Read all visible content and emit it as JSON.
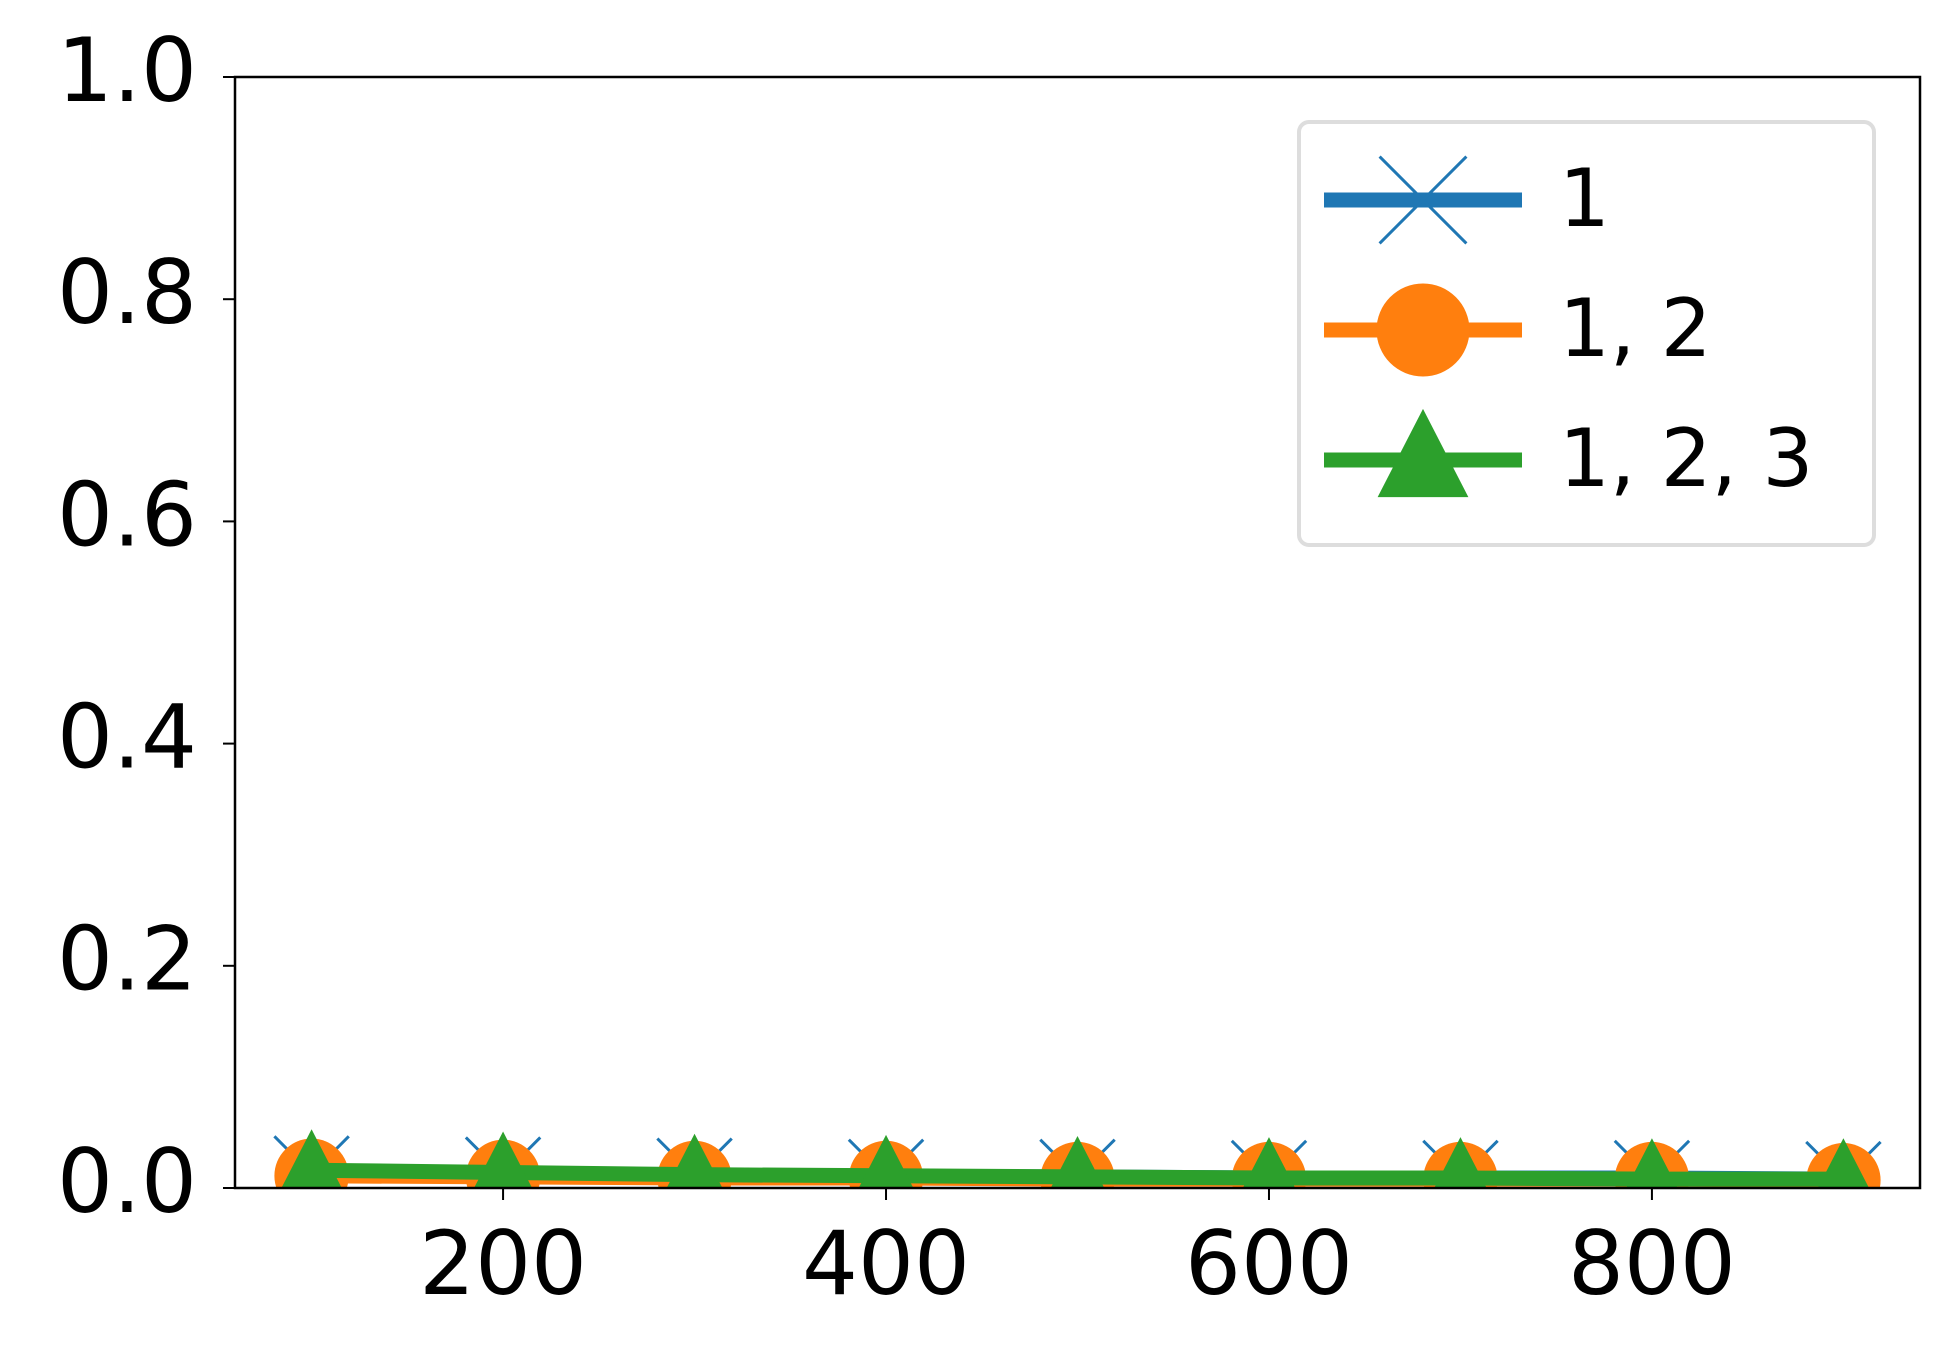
{
  "chart_data": {
    "type": "line",
    "x": [
      100,
      200,
      300,
      400,
      500,
      600,
      700,
      800,
      900
    ],
    "series": [
      {
        "name": "1",
        "color": "#1f77b4",
        "marker": "x",
        "values": [
          0.013,
          0.012,
          0.011,
          0.01,
          0.01,
          0.009,
          0.009,
          0.009,
          0.008
        ]
      },
      {
        "name": "1, 2",
        "color": "#ff7f0e",
        "marker": "o",
        "values": [
          0.011,
          0.01,
          0.009,
          0.009,
          0.008,
          0.008,
          0.008,
          0.008,
          0.007
        ]
      },
      {
        "name": "1, 2, 3",
        "color": "#2ca02c",
        "marker": "^",
        "values": [
          0.016,
          0.014,
          0.012,
          0.011,
          0.01,
          0.009,
          0.009,
          0.008,
          0.008
        ]
      }
    ],
    "xlim": [
      60,
      940
    ],
    "xticks": [
      200,
      400,
      600,
      800
    ],
    "ylim": [
      0,
      1
    ],
    "yticks": [
      {
        "value": 0,
        "label": "0.0"
      },
      0.2,
      0.4,
      0.6,
      0.8,
      {
        "value": 1,
        "label": "1.0"
      }
    ],
    "grid": false,
    "legend": "upper right"
  }
}
